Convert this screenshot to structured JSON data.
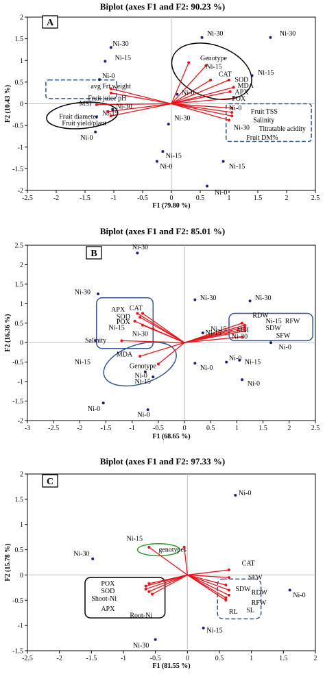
{
  "chart_data": [
    {
      "type": "scatter",
      "panel": "A",
      "title": "Biplot (axes F1 and F2: 90.23 %)",
      "xlabel": "F1 (79.80 %)",
      "ylabel": "F2 (10.43 %)",
      "xlim": [
        -2.5,
        2.5
      ],
      "ylim": [
        -2,
        2
      ],
      "xticks": [
        -2.5,
        -2,
        -1.5,
        -1,
        -0.5,
        0,
        0.5,
        1,
        1.5,
        2,
        2.5
      ],
      "yticks": [
        -2,
        -1.5,
        -1,
        -0.5,
        0,
        0.5,
        1,
        1.5,
        2
      ],
      "observations": [
        {
          "label": "Ni-30",
          "x": -1.05,
          "y": 1.3,
          "lx": -1.02,
          "ly": 1.38
        },
        {
          "label": "Ni-15",
          "x": -1.15,
          "y": 0.98,
          "lx": -0.98,
          "ly": 1.06
        },
        {
          "label": "Ni-0",
          "x": -1.25,
          "y": 0.56,
          "lx": -1.2,
          "ly": 0.64
        },
        {
          "label": "Ni-30",
          "x": -1.02,
          "y": -0.13,
          "lx": -0.96,
          "ly": -0.06
        },
        {
          "label": "Ni-15",
          "x": -1.3,
          "y": -0.3,
          "lx": -1.2,
          "ly": -0.22
        },
        {
          "label": "Ni-0",
          "x": -1.32,
          "y": -0.65,
          "lx": -1.58,
          "ly": -0.78
        },
        {
          "label": "Ni-30",
          "x": 0.53,
          "y": 1.53,
          "lx": 0.62,
          "ly": 1.62
        },
        {
          "label": "Ni-30",
          "x": 1.72,
          "y": 1.53,
          "lx": 1.88,
          "ly": 1.62
        },
        {
          "label": "Ni-15",
          "x": 1.4,
          "y": 0.65,
          "lx": 1.5,
          "ly": 0.72
        },
        {
          "label": "Ni-0",
          "x": 0.1,
          "y": 0.22,
          "lx": 0.18,
          "ly": 0.25
        },
        {
          "label": "Ni-30",
          "x": -0.05,
          "y": -0.47,
          "lx": 0.05,
          "ly": -0.33
        },
        {
          "label": "Ni-15",
          "x": -0.15,
          "y": -1.1,
          "lx": -0.1,
          "ly": -1.2
        },
        {
          "label": "Ni-0",
          "x": -0.25,
          "y": -1.33,
          "lx": -0.2,
          "ly": -1.45
        },
        {
          "label": "Ni-15",
          "x": 0.9,
          "y": -1.33,
          "lx": 1.0,
          "ly": -1.45
        },
        {
          "label": "Ni-0",
          "x": 0.62,
          "y": -1.9,
          "lx": 0.75,
          "ly": -2.05
        }
      ],
      "variables": [
        {
          "label": "avg Frt weight",
          "x": -1.05,
          "y": 0.35,
          "lx": -1.4,
          "ly": 0.4
        },
        {
          "label": "Fruit juice pH",
          "x": -1.05,
          "y": 0.25,
          "lx": -1.45,
          "ly": 0.13
        },
        {
          "label": "MSI",
          "x": -1.3,
          "y": -0.02,
          "lx": -1.6,
          "ly": 0.0
        },
        {
          "label": "Fruit diameter",
          "x": -1.1,
          "y": -0.18,
          "lx": -1.95,
          "ly": -0.3
        },
        {
          "label": "Fruit yield/plant",
          "x": -1.05,
          "y": -0.28,
          "lx": -1.9,
          "ly": -0.45
        },
        {
          "label": "Genotype",
          "x": 0.3,
          "y": 0.95,
          "lx": 0.5,
          "ly": 1.05
        },
        {
          "label": "Ni-15",
          "x": 0.6,
          "y": 0.88,
          "lx": 0.6,
          "ly": 0.85
        },
        {
          "label": "CAT",
          "x": 0.68,
          "y": 0.55,
          "lx": 0.82,
          "ly": 0.68
        },
        {
          "label": "SOD",
          "x": 1.0,
          "y": 0.55,
          "lx": 1.1,
          "ly": 0.55
        },
        {
          "label": "MDA",
          "x": 1.08,
          "y": 0.38,
          "lx": 1.15,
          "ly": 0.42
        },
        {
          "label": "APX",
          "x": 1.02,
          "y": 0.28,
          "lx": 1.1,
          "ly": 0.27
        },
        {
          "label": "POX",
          "x": 1.08,
          "y": 0.13,
          "lx": 1.05,
          "ly": 0.12
        },
        {
          "label": "Fruit TSS",
          "x": 1.05,
          "y": -0.1,
          "lx": 1.38,
          "ly": -0.18
        },
        {
          "label": "Salinity",
          "x": 1.05,
          "y": -0.2,
          "lx": 1.42,
          "ly": -0.38
        },
        {
          "label": "Titratable acidity",
          "x": 1.05,
          "y": -0.28,
          "lx": 1.52,
          "ly": -0.58
        },
        {
          "label": "Fruit DM%",
          "x": 1.0,
          "y": -0.38,
          "lx": 1.3,
          "ly": -0.78
        }
      ],
      "extra_labels": [
        {
          "label": "Ni-0",
          "lx": 1.0,
          "ly": -0.1
        },
        {
          "label": "Ni-30",
          "lx": 1.08,
          "ly": -0.55
        }
      ]
    },
    {
      "type": "scatter",
      "panel": "B",
      "title": "Biplot (axes F1 and F2: 85.01 %)",
      "xlabel": "F1 (68.65 %)",
      "ylabel": "F2 (16.36 %)",
      "xlim": [
        -3,
        2.5
      ],
      "ylim": [
        -2,
        2.5
      ],
      "xticks": [
        -3,
        -2.5,
        -2,
        -1.5,
        -1,
        -0.5,
        0,
        0.5,
        1,
        1.5,
        2,
        2.5
      ],
      "yticks": [
        -2,
        -1.5,
        -1,
        -0.5,
        0,
        0.5,
        1,
        1.5,
        2,
        2.5
      ],
      "observations": [
        {
          "label": "Ni-30",
          "x": -0.9,
          "y": 2.3,
          "lx": -1.0,
          "ly": 2.45
        },
        {
          "label": "Ni-30",
          "x": -1.65,
          "y": 1.25,
          "lx": -2.1,
          "ly": 1.3
        },
        {
          "label": "Ni-15",
          "x": -1.7,
          "y": 0.05,
          "lx": -2.1,
          "ly": -0.5
        },
        {
          "label": "Ni-0",
          "x": -1.55,
          "y": -1.55,
          "lx": -1.85,
          "ly": -1.7
        },
        {
          "label": "Ni-0",
          "x": -0.7,
          "y": -1.72,
          "lx": -0.9,
          "ly": -1.85
        },
        {
          "label": "Ni-30",
          "x": 0.2,
          "y": 1.1,
          "lx": 0.3,
          "ly": 1.15
        },
        {
          "label": "Ni-30",
          "x": 1.25,
          "y": 1.07,
          "lx": 1.35,
          "ly": 1.15
        },
        {
          "label": "Ni-0",
          "x": 0.2,
          "y": -0.53,
          "lx": 0.3,
          "ly": -0.65
        },
        {
          "label": "Ni-0",
          "x": 0.8,
          "y": -0.5,
          "lx": 0.85,
          "ly": -0.4
        },
        {
          "label": "Ni-15",
          "x": 1.05,
          "y": -0.45,
          "lx": 1.15,
          "ly": -0.5
        },
        {
          "label": "Ni-0",
          "x": 1.1,
          "y": -0.95,
          "lx": 1.2,
          "ly": -1.05
        },
        {
          "label": "Ni-0",
          "x": 1.65,
          "y": 0.0,
          "lx": 1.8,
          "ly": -0.12
        },
        {
          "label": "Ni-15",
          "x": 0.35,
          "y": 0.25,
          "lx": 0.4,
          "ly": 0.25
        },
        {
          "label": "Ni-15",
          "x": -0.6,
          "y": -0.88,
          "lx": -0.95,
          "ly": -1.0
        },
        {
          "label": "Ni-0",
          "x": -0.75,
          "y": -0.75,
          "lx": -0.95,
          "ly": -0.85
        }
      ],
      "variables": [
        {
          "label": "APX",
          "x": -0.9,
          "y": 0.75,
          "lx": -1.4,
          "ly": 0.85
        },
        {
          "label": "CAT",
          "x": -0.8,
          "y": 0.75,
          "lx": -1.05,
          "ly": 0.88
        },
        {
          "label": "SOD",
          "x": -0.85,
          "y": 0.65,
          "lx": -1.3,
          "ly": 0.66
        },
        {
          "label": "POX",
          "x": -0.95,
          "y": 0.55,
          "lx": -1.3,
          "ly": 0.53
        },
        {
          "label": "Ni-15",
          "x": -0.8,
          "y": 0.45,
          "lx": -1.45,
          "ly": 0.38
        },
        {
          "label": "Ni-30",
          "x": -0.6,
          "y": 0.35,
          "lx": -1.0,
          "ly": 0.22
        },
        {
          "label": "Salinity",
          "x": -1.2,
          "y": 0.05,
          "lx": -1.9,
          "ly": 0.06
        },
        {
          "label": "MDA",
          "x": -0.85,
          "y": -0.35,
          "lx": -1.3,
          "ly": -0.3
        },
        {
          "label": "Genotype",
          "x": -0.5,
          "y": -0.55,
          "lx": -1.05,
          "ly": -0.6
        },
        {
          "label": "RDW",
          "x": 1.1,
          "y": 0.5,
          "lx": 1.3,
          "ly": 0.7
        },
        {
          "label": "Ni-15",
          "x": 1.15,
          "y": 0.45,
          "lx": 1.55,
          "ly": 0.55
        },
        {
          "label": "RFW",
          "x": 1.15,
          "y": 0.4,
          "lx": 1.92,
          "ly": 0.55
        },
        {
          "label": "MSI",
          "x": 1.15,
          "y": 0.3,
          "lx": 1.0,
          "ly": 0.32
        },
        {
          "label": "SDW",
          "x": 1.15,
          "y": 0.35,
          "lx": 1.55,
          "ly": 0.37
        },
        {
          "label": "SFW",
          "x": 1.1,
          "y": 0.15,
          "lx": 1.75,
          "ly": 0.18
        }
      ],
      "extra_labels": [
        {
          "label": "Ni-15",
          "lx": 0.5,
          "ly": 0.35
        },
        {
          "label": "Ni-30",
          "lx": 0.9,
          "ly": 0.15
        }
      ]
    },
    {
      "type": "scatter",
      "panel": "C",
      "title": "Biplot (axes F1 and F2: 97.33 %)",
      "xlabel": "F1 (81.55 %)",
      "ylabel": "F2 (15.78 %)",
      "xlim": [
        -2.5,
        2
      ],
      "ylim": [
        -1.5,
        2
      ],
      "xticks": [
        -2.5,
        -2,
        -1.5,
        -1,
        -0.5,
        0,
        0.5,
        1,
        1.5,
        2
      ],
      "yticks": [
        -1.5,
        -1,
        -0.5,
        0,
        0.5,
        1,
        1.5,
        2
      ],
      "observations": [
        {
          "label": "Ni-0",
          "x": 0.75,
          "y": 1.58,
          "lx": 0.8,
          "ly": 1.62
        },
        {
          "label": "Ni-30",
          "x": -1.48,
          "y": 0.32,
          "lx": -1.78,
          "ly": 0.42
        },
        {
          "label": "Ni-0",
          "x": 1.6,
          "y": -0.3,
          "lx": 1.65,
          "ly": -0.4
        },
        {
          "label": "Ni-15",
          "x": 0.25,
          "y": -1.05,
          "lx": 0.3,
          "ly": -1.1
        },
        {
          "label": "Ni-30",
          "x": -0.5,
          "y": -1.28,
          "lx": -0.85,
          "ly": -1.4
        }
      ],
      "variables": [
        {
          "label": "Ni-15",
          "x": -0.6,
          "y": 0.55,
          "lx": -0.95,
          "ly": 0.72
        },
        {
          "label": "genotypes",
          "x": -0.05,
          "y": 0.55,
          "lx": -0.45,
          "ly": 0.5
        },
        {
          "label": "CAT",
          "x": 0.65,
          "y": 0.1,
          "lx": 0.85,
          "ly": 0.23
        },
        {
          "label": "SFW",
          "x": 0.65,
          "y": -0.05,
          "lx": 0.95,
          "ly": -0.05
        },
        {
          "label": "SDW",
          "x": 0.6,
          "y": -0.2,
          "lx": 0.75,
          "ly": -0.28
        },
        {
          "label": "RDW",
          "x": 0.65,
          "y": -0.3,
          "lx": 1.0,
          "ly": -0.35
        },
        {
          "label": "RFW",
          "x": 0.65,
          "y": -0.4,
          "lx": 1.0,
          "ly": -0.55
        },
        {
          "label": "SL",
          "x": 0.6,
          "y": -0.45,
          "lx": 0.92,
          "ly": -0.7
        },
        {
          "label": "RL",
          "x": 0.6,
          "y": -0.5,
          "lx": 0.65,
          "ly": -0.73
        },
        {
          "label": "POX",
          "x": -0.6,
          "y": -0.17,
          "lx": -1.35,
          "ly": -0.17
        },
        {
          "label": "SOD",
          "x": -0.65,
          "y": -0.22,
          "lx": -1.35,
          "ly": -0.32
        },
        {
          "label": "Shoot-Ni",
          "x": -0.65,
          "y": -0.28,
          "lx": -1.5,
          "ly": -0.47
        },
        {
          "label": "APX",
          "x": -0.6,
          "y": -0.33,
          "lx": -1.35,
          "ly": -0.67
        },
        {
          "label": "Root-Ni",
          "x": -0.55,
          "y": -0.38,
          "lx": -0.9,
          "ly": -0.8
        }
      ],
      "extra_labels": []
    }
  ],
  "colors": {
    "vector": "#e8141b",
    "point": "#1f1f7a",
    "tick": "#000000",
    "axis": "#bfbfbf",
    "box_black": "#000000",
    "box_blue": "#2f5597",
    "box_green": "#2e9a2e"
  }
}
